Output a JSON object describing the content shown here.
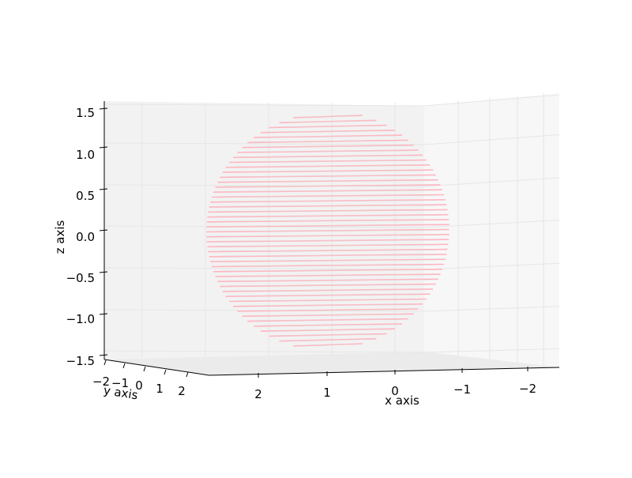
{
  "chart_data": {
    "type": "surface-3d",
    "surface": "sphere",
    "radius": 1.45,
    "center": [
      0,
      0,
      0
    ],
    "color": "#ffb6c1",
    "ring_count": 48,
    "xlabel": "x axis",
    "ylabel": "y axis",
    "zlabel": "z axis",
    "xlim": [
      -2.5,
      2.5
    ],
    "ylim": [
      -2,
      2
    ],
    "zlim": [
      -1.5,
      1.5
    ],
    "x_ticks": [
      "2",
      "1",
      "0",
      "−1",
      "−2"
    ],
    "y_ticks": [
      "−2",
      "−1",
      "0",
      "1",
      "2"
    ],
    "z_ticks": [
      "1.5",
      "1.0",
      "0.5",
      "0.0",
      "−0.5",
      "−1.0",
      "−1.5"
    ],
    "grid": true,
    "pane_color": "#f2f2f2",
    "grid_color": "#e6e6e6"
  }
}
